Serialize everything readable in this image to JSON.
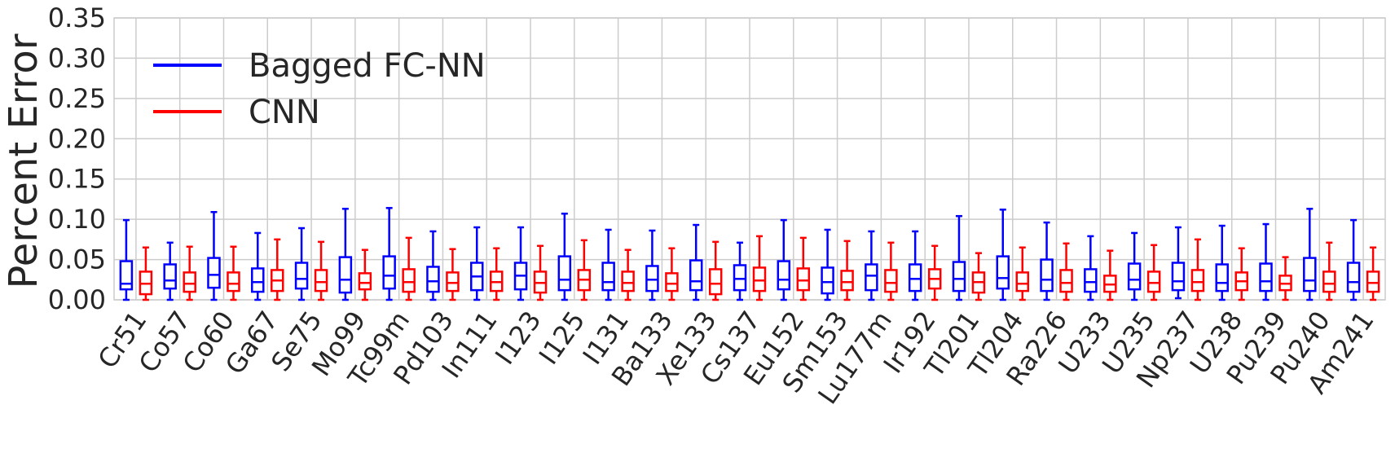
{
  "chart_data": {
    "type": "boxplot",
    "title": "",
    "xlabel": "",
    "ylabel": "Percent Error",
    "ylim": [
      0,
      0.35
    ],
    "yticks": [
      "0.00",
      "0.05",
      "0.10",
      "0.15",
      "0.20",
      "0.25",
      "0.30",
      "0.35"
    ],
    "grid": true,
    "legend_position": "top-left",
    "categories": [
      "Cr51",
      "Co57",
      "Co60",
      "Ga67",
      "Se75",
      "Mo99",
      "Tc99m",
      "Pd103",
      "In111",
      "I123",
      "I125",
      "I131",
      "Ba133",
      "Xe133",
      "Cs137",
      "Eu152",
      "Sm153",
      "Lu177m",
      "Ir192",
      "Tl201",
      "Tl204",
      "Ra226",
      "U233",
      "U235",
      "Np237",
      "U238",
      "Pu239",
      "Pu240",
      "Am241"
    ],
    "series": [
      {
        "name": "Bagged FC-NN",
        "color": "#0000ff",
        "boxes": [
          {
            "min": 0.0,
            "q1": 0.013,
            "median": 0.02,
            "q3": 0.048,
            "max": 0.099
          },
          {
            "min": 0.0,
            "q1": 0.014,
            "median": 0.024,
            "q3": 0.044,
            "max": 0.071
          },
          {
            "min": 0.0,
            "q1": 0.015,
            "median": 0.031,
            "q3": 0.052,
            "max": 0.109
          },
          {
            "min": 0.0,
            "q1": 0.01,
            "median": 0.022,
            "q3": 0.039,
            "max": 0.083
          },
          {
            "min": 0.0,
            "q1": 0.014,
            "median": 0.026,
            "q3": 0.046,
            "max": 0.089
          },
          {
            "min": 0.0,
            "q1": 0.009,
            "median": 0.025,
            "q3": 0.053,
            "max": 0.113
          },
          {
            "min": 0.0,
            "q1": 0.014,
            "median": 0.03,
            "q3": 0.054,
            "max": 0.114
          },
          {
            "min": 0.0,
            "q1": 0.01,
            "median": 0.023,
            "q3": 0.041,
            "max": 0.085
          },
          {
            "min": 0.0,
            "q1": 0.012,
            "median": 0.029,
            "q3": 0.046,
            "max": 0.09
          },
          {
            "min": 0.0,
            "q1": 0.013,
            "median": 0.03,
            "q3": 0.046,
            "max": 0.09
          },
          {
            "min": 0.0,
            "q1": 0.012,
            "median": 0.025,
            "q3": 0.054,
            "max": 0.107
          },
          {
            "min": 0.0,
            "q1": 0.012,
            "median": 0.022,
            "q3": 0.046,
            "max": 0.087
          },
          {
            "min": 0.0,
            "q1": 0.011,
            "median": 0.025,
            "q3": 0.042,
            "max": 0.086
          },
          {
            "min": 0.0,
            "q1": 0.012,
            "median": 0.023,
            "q3": 0.049,
            "max": 0.093
          },
          {
            "min": 0.0,
            "q1": 0.012,
            "median": 0.026,
            "q3": 0.043,
            "max": 0.071
          },
          {
            "min": 0.0,
            "q1": 0.013,
            "median": 0.025,
            "q3": 0.048,
            "max": 0.099
          },
          {
            "min": 0.0,
            "q1": 0.008,
            "median": 0.022,
            "q3": 0.04,
            "max": 0.087
          },
          {
            "min": 0.0,
            "q1": 0.012,
            "median": 0.03,
            "q3": 0.044,
            "max": 0.085
          },
          {
            "min": 0.0,
            "q1": 0.011,
            "median": 0.026,
            "q3": 0.044,
            "max": 0.085
          },
          {
            "min": 0.0,
            "q1": 0.011,
            "median": 0.026,
            "q3": 0.047,
            "max": 0.104
          },
          {
            "min": 0.0,
            "q1": 0.014,
            "median": 0.027,
            "q3": 0.054,
            "max": 0.112
          },
          {
            "min": 0.0,
            "q1": 0.011,
            "median": 0.025,
            "q3": 0.05,
            "max": 0.096
          },
          {
            "min": 0.0,
            "q1": 0.01,
            "median": 0.022,
            "q3": 0.038,
            "max": 0.079
          },
          {
            "min": 0.0,
            "q1": 0.013,
            "median": 0.025,
            "q3": 0.045,
            "max": 0.083
          },
          {
            "min": 0.002,
            "q1": 0.012,
            "median": 0.023,
            "q3": 0.046,
            "max": 0.09
          },
          {
            "min": 0.0,
            "q1": 0.011,
            "median": 0.021,
            "q3": 0.044,
            "max": 0.092
          },
          {
            "min": 0.0,
            "q1": 0.011,
            "median": 0.023,
            "q3": 0.045,
            "max": 0.094
          },
          {
            "min": 0.0,
            "q1": 0.011,
            "median": 0.024,
            "q3": 0.052,
            "max": 0.113
          },
          {
            "min": 0.0,
            "q1": 0.01,
            "median": 0.022,
            "q3": 0.046,
            "max": 0.099
          }
        ]
      },
      {
        "name": "CNN",
        "color": "#ff0000",
        "boxes": [
          {
            "min": 0.0,
            "q1": 0.007,
            "median": 0.02,
            "q3": 0.035,
            "max": 0.065
          },
          {
            "min": 0.0,
            "q1": 0.01,
            "median": 0.02,
            "q3": 0.034,
            "max": 0.066
          },
          {
            "min": 0.0,
            "q1": 0.011,
            "median": 0.02,
            "q3": 0.034,
            "max": 0.066
          },
          {
            "min": 0.0,
            "q1": 0.011,
            "median": 0.024,
            "q3": 0.037,
            "max": 0.075
          },
          {
            "min": 0.0,
            "q1": 0.011,
            "median": 0.022,
            "q3": 0.037,
            "max": 0.072
          },
          {
            "min": 0.0,
            "q1": 0.013,
            "median": 0.021,
            "q3": 0.033,
            "max": 0.062
          },
          {
            "min": 0.0,
            "q1": 0.01,
            "median": 0.022,
            "q3": 0.038,
            "max": 0.077
          },
          {
            "min": 0.0,
            "q1": 0.011,
            "median": 0.021,
            "q3": 0.034,
            "max": 0.063
          },
          {
            "min": 0.0,
            "q1": 0.011,
            "median": 0.022,
            "q3": 0.035,
            "max": 0.064
          },
          {
            "min": 0.0,
            "q1": 0.009,
            "median": 0.021,
            "q3": 0.035,
            "max": 0.067
          },
          {
            "min": 0.0,
            "q1": 0.012,
            "median": 0.025,
            "q3": 0.037,
            "max": 0.074
          },
          {
            "min": 0.0,
            "q1": 0.011,
            "median": 0.021,
            "q3": 0.035,
            "max": 0.062
          },
          {
            "min": 0.0,
            "q1": 0.011,
            "median": 0.02,
            "q3": 0.033,
            "max": 0.064
          },
          {
            "min": 0.0,
            "q1": 0.007,
            "median": 0.02,
            "q3": 0.038,
            "max": 0.072
          },
          {
            "min": 0.0,
            "q1": 0.011,
            "median": 0.024,
            "q3": 0.04,
            "max": 0.079
          },
          {
            "min": 0.0,
            "q1": 0.012,
            "median": 0.024,
            "q3": 0.039,
            "max": 0.077
          },
          {
            "min": 0.0,
            "q1": 0.012,
            "median": 0.022,
            "q3": 0.036,
            "max": 0.073
          },
          {
            "min": 0.0,
            "q1": 0.01,
            "median": 0.021,
            "q3": 0.037,
            "max": 0.071
          },
          {
            "min": 0.0,
            "q1": 0.014,
            "median": 0.026,
            "q3": 0.038,
            "max": 0.067
          },
          {
            "min": 0.0,
            "q1": 0.009,
            "median": 0.022,
            "q3": 0.034,
            "max": 0.058
          },
          {
            "min": 0.0,
            "q1": 0.011,
            "median": 0.02,
            "q3": 0.034,
            "max": 0.065
          },
          {
            "min": 0.0,
            "q1": 0.01,
            "median": 0.021,
            "q3": 0.037,
            "max": 0.07
          },
          {
            "min": 0.0,
            "q1": 0.01,
            "median": 0.019,
            "q3": 0.03,
            "max": 0.061
          },
          {
            "min": 0.0,
            "q1": 0.01,
            "median": 0.021,
            "q3": 0.035,
            "max": 0.068
          },
          {
            "min": 0.0,
            "q1": 0.011,
            "median": 0.022,
            "q3": 0.037,
            "max": 0.075
          },
          {
            "min": 0.0,
            "q1": 0.012,
            "median": 0.023,
            "q3": 0.034,
            "max": 0.064
          },
          {
            "min": 0.0,
            "q1": 0.012,
            "median": 0.02,
            "q3": 0.03,
            "max": 0.053
          },
          {
            "min": 0.0,
            "q1": 0.01,
            "median": 0.02,
            "q3": 0.035,
            "max": 0.071
          },
          {
            "min": 0.0,
            "q1": 0.01,
            "median": 0.021,
            "q3": 0.035,
            "max": 0.065
          }
        ]
      }
    ]
  }
}
